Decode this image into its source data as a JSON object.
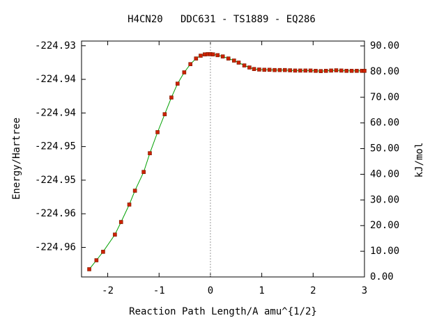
{
  "chart_data": {
    "type": "line",
    "title": "H4CN20   DDC631 - TS1889 - EQ286",
    "xlabel": "Reaction Path Length/A amu^{1/2}",
    "ylabel": "Energy/Hartree",
    "y2label": "kJ/mol",
    "xlim": [
      -2.51,
      3
    ],
    "xticks": [
      -2,
      -1,
      0,
      1,
      2,
      3
    ],
    "ylim": [
      -224.9644,
      -224.9293
    ],
    "yticks": [
      {
        "value": -224.93,
        "label": "-224.93"
      },
      {
        "value": -224.935,
        "label": "-224.94"
      },
      {
        "value": -224.94,
        "label": "-224.94"
      },
      {
        "value": -224.945,
        "label": "-224.95"
      },
      {
        "value": -224.95,
        "label": "-224.95"
      },
      {
        "value": -224.955,
        "label": "-224.96"
      },
      {
        "value": -224.96,
        "label": "-224.96"
      }
    ],
    "y2lim": [
      0,
      91.9
    ],
    "y2ticks": [
      {
        "value": 0,
        "label": "0.00"
      },
      {
        "value": 10,
        "label": "10.00"
      },
      {
        "value": 20,
        "label": "20.00"
      },
      {
        "value": 30,
        "label": "30.00"
      },
      {
        "value": 40,
        "label": "40.00"
      },
      {
        "value": 50,
        "label": "50.00"
      },
      {
        "value": 60,
        "label": "60.00"
      },
      {
        "value": 70,
        "label": "70.00"
      },
      {
        "value": 80,
        "label": "80.00"
      },
      {
        "value": 90,
        "label": "90.00"
      }
    ],
    "x": [
      -2.36,
      -2.22,
      -2.09,
      -1.86,
      -1.74,
      -1.58,
      -1.47,
      -1.3,
      -1.18,
      -1.03,
      -0.89,
      -0.76,
      -0.64,
      -0.51,
      -0.39,
      -0.28,
      -0.19,
      -0.11,
      -0.05,
      0,
      0.05,
      0.14,
      0.24,
      0.35,
      0.46,
      0.55,
      0.66,
      0.76,
      0.85,
      0.95,
      1.05,
      1.15,
      1.25,
      1.35,
      1.45,
      1.55,
      1.65,
      1.75,
      1.85,
      1.95,
      2.05,
      2.15,
      2.25,
      2.35,
      2.45,
      2.55,
      2.65,
      2.75,
      2.85,
      2.95,
      3.0
    ],
    "series": [
      {
        "color": "#00a000",
        "marker_color": "#cc2200",
        "axis": "y2",
        "values": [
          3.0,
          6.5,
          9.8,
          16.5,
          21.4,
          28.2,
          33.6,
          40.9,
          48.2,
          56.4,
          63.4,
          69.9,
          75.3,
          79.7,
          82.9,
          85.1,
          86.2,
          86.7,
          86.8,
          86.8,
          86.7,
          86.4,
          85.9,
          85.1,
          84.3,
          83.5,
          82.4,
          81.6,
          81.0,
          80.8,
          80.7,
          80.7,
          80.6,
          80.6,
          80.6,
          80.5,
          80.4,
          80.4,
          80.4,
          80.4,
          80.3,
          80.2,
          80.3,
          80.4,
          80.5,
          80.4,
          80.3,
          80.3,
          80.3,
          80.3,
          80.3
        ]
      }
    ],
    "vline": 0
  }
}
